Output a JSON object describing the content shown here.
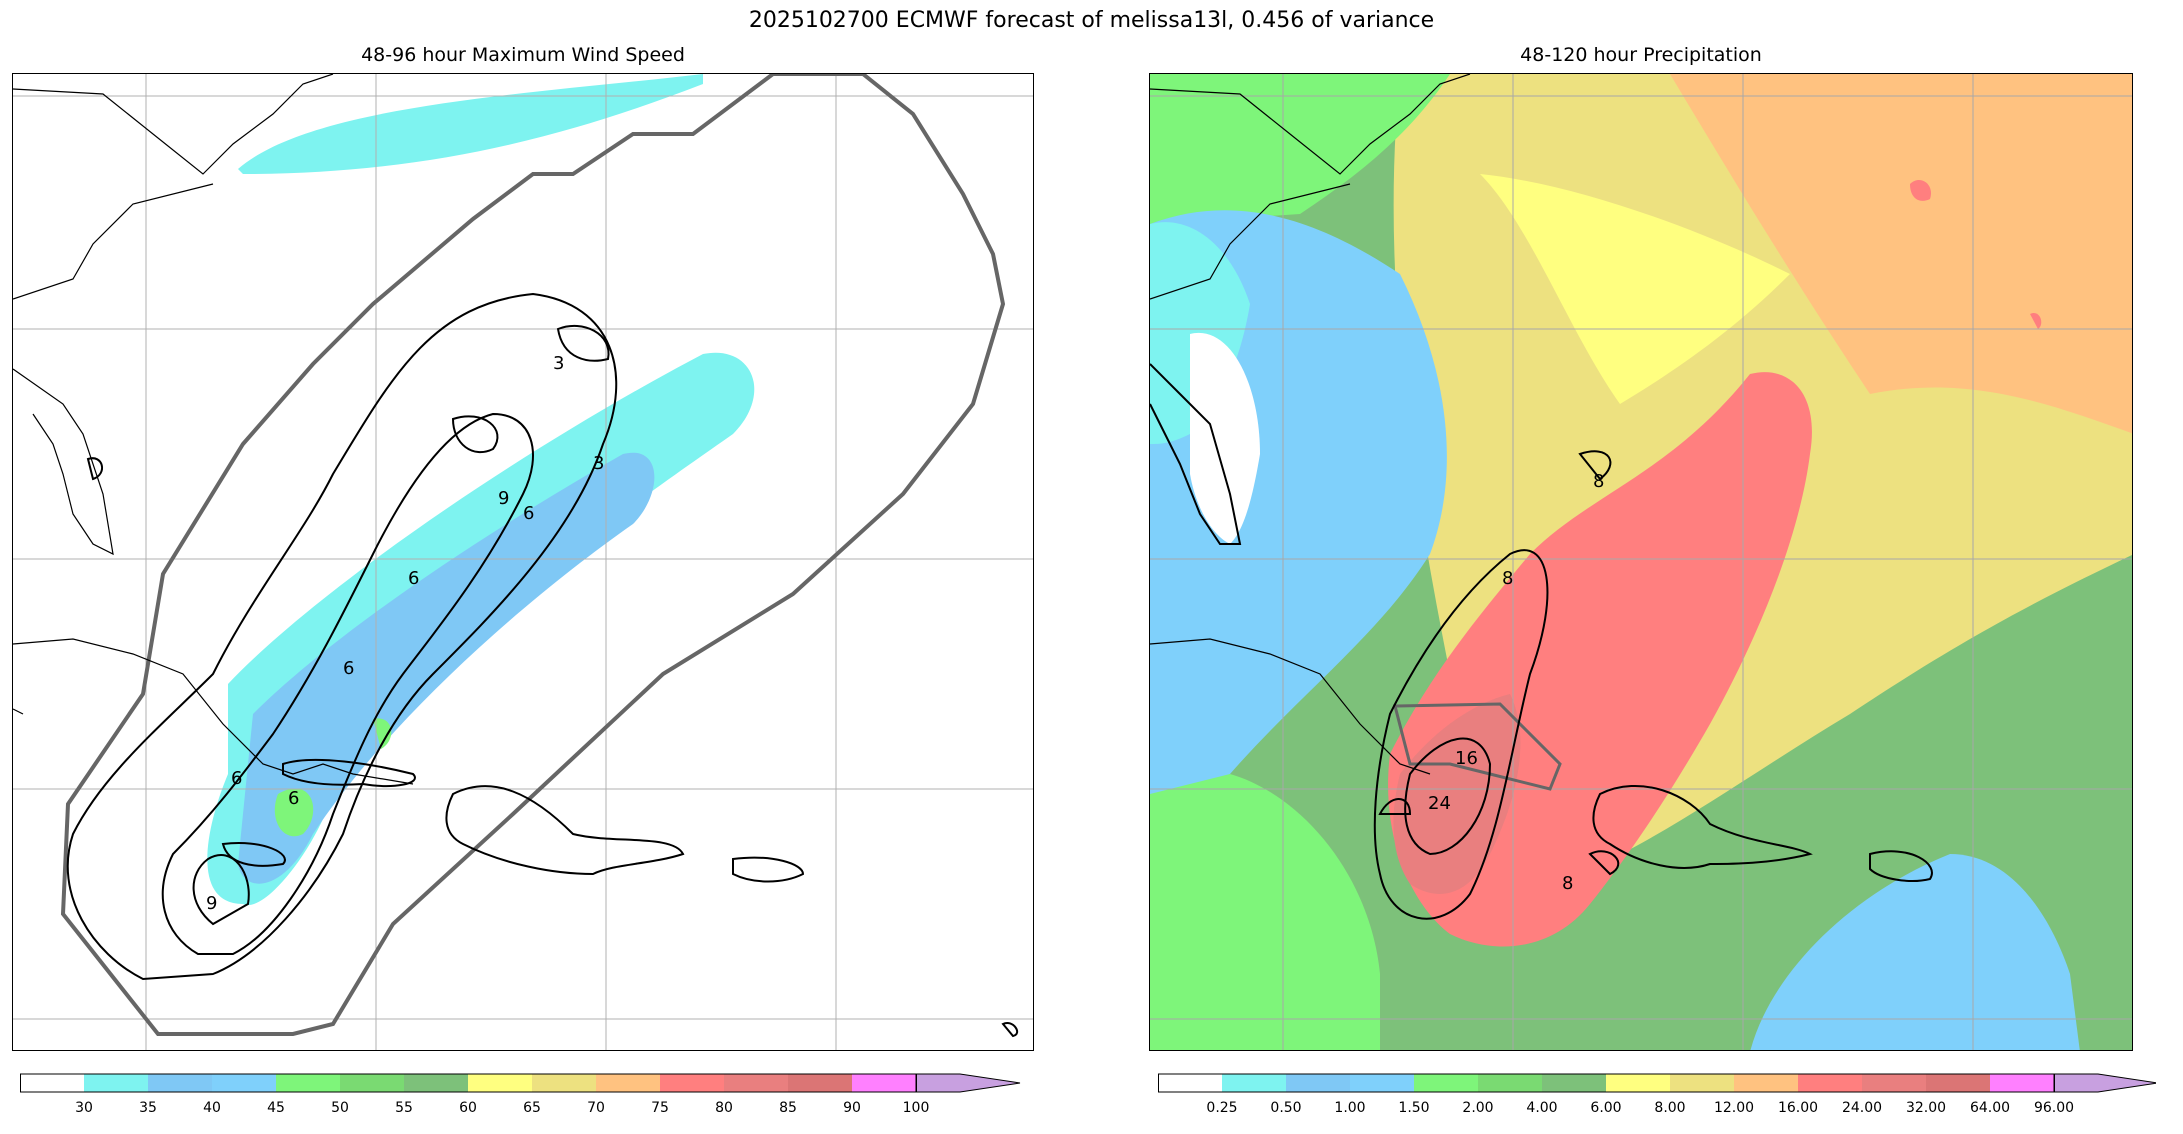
{
  "title": "2025102700 ECMWF forecast of melissa13l, 0.456 of variance",
  "panels": [
    {
      "title": "48-96 hour Maximum Wind Speed",
      "colorbar": {
        "ticks": [
          "30",
          "35",
          "40",
          "45",
          "50",
          "55",
          "60",
          "65",
          "70",
          "75",
          "80",
          "85",
          "90",
          "100"
        ],
        "colors": [
          "#ffffff",
          "#7ef3f0",
          "#7fc8f5",
          "#7fd0fb",
          "#7ef57a",
          "#7ada72",
          "#7dc17a",
          "#ffff80",
          "#ede180",
          "#ffc280",
          "#ff7f7f",
          "#e97f7f",
          "#db7575",
          "#ff80ff",
          "#c8a0e0"
        ]
      },
      "contour_labels": [
        "3",
        "3",
        "6",
        "6",
        "6",
        "9",
        "6",
        "6",
        "9"
      ]
    },
    {
      "title": "48-120 hour Precipitation",
      "colorbar": {
        "ticks": [
          "0.25",
          "0.50",
          "1.00",
          "1.50",
          "2.00",
          "4.00",
          "6.00",
          "8.00",
          "12.00",
          "16.00",
          "24.00",
          "32.00",
          "64.00",
          "96.00"
        ],
        "colors": [
          "#ffffff",
          "#7ef3f0",
          "#7fc8f5",
          "#7fd0fb",
          "#7ef57a",
          "#7ada72",
          "#7dc17a",
          "#ffff80",
          "#ede180",
          "#ffc280",
          "#ff7f7f",
          "#e97f7f",
          "#db7575",
          "#ff80ff",
          "#c8a0e0"
        ]
      },
      "contour_labels": [
        "8",
        "8",
        "16",
        "24",
        "8"
      ]
    }
  ]
}
